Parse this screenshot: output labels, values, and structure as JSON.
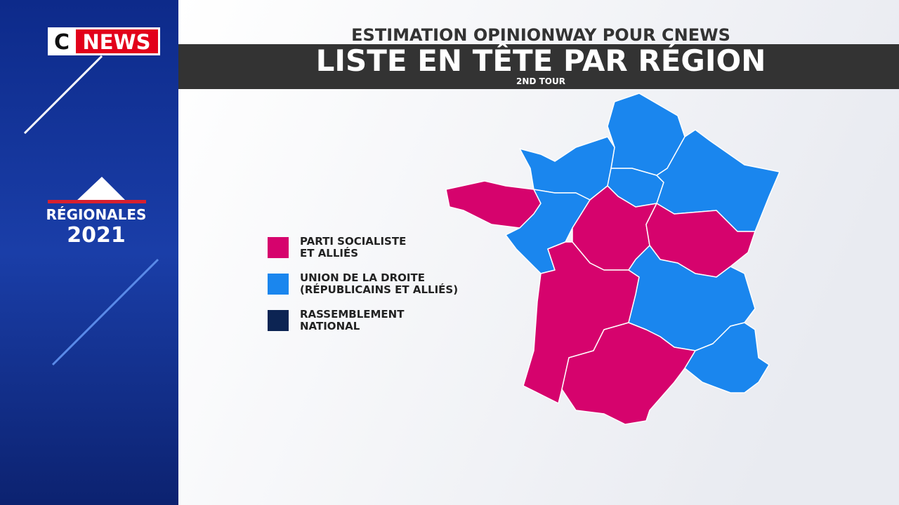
{
  "logo": {
    "letter": "C",
    "word": "NEWS"
  },
  "sidebar": {
    "label": "RÉGIONALES",
    "year": "2021"
  },
  "header": {
    "kicker": "ESTIMATION OPINIONWAY POUR CNEWS",
    "title": "LISTE EN TÊTE PAR RÉGION",
    "subtitle": "2ND TOUR"
  },
  "legend": {
    "items": [
      {
        "lines": [
          "PARTI SOCIALISTE",
          "ET ALLIÉS"
        ],
        "color": "#d6036d"
      },
      {
        "lines": [
          "UNION DE LA DROITE",
          "(RÉPUBLICAINS ET ALLIÉS)"
        ],
        "color": "#1a86ee"
      },
      {
        "lines": [
          "RASSEMBLEMENT",
          "NATIONAL"
        ],
        "color": "#0c2453"
      }
    ]
  },
  "map": {
    "regions": [
      {
        "winner": 1
      },
      {
        "winner": 1
      },
      {
        "winner": 1
      },
      {
        "winner": 1
      },
      {
        "winner": 0
      },
      {
        "winner": 1
      },
      {
        "winner": 0
      },
      {
        "winner": 0
      },
      {
        "winner": 0
      },
      {
        "winner": 1
      },
      {
        "winner": 0
      },
      {
        "winner": 1
      }
    ]
  }
}
